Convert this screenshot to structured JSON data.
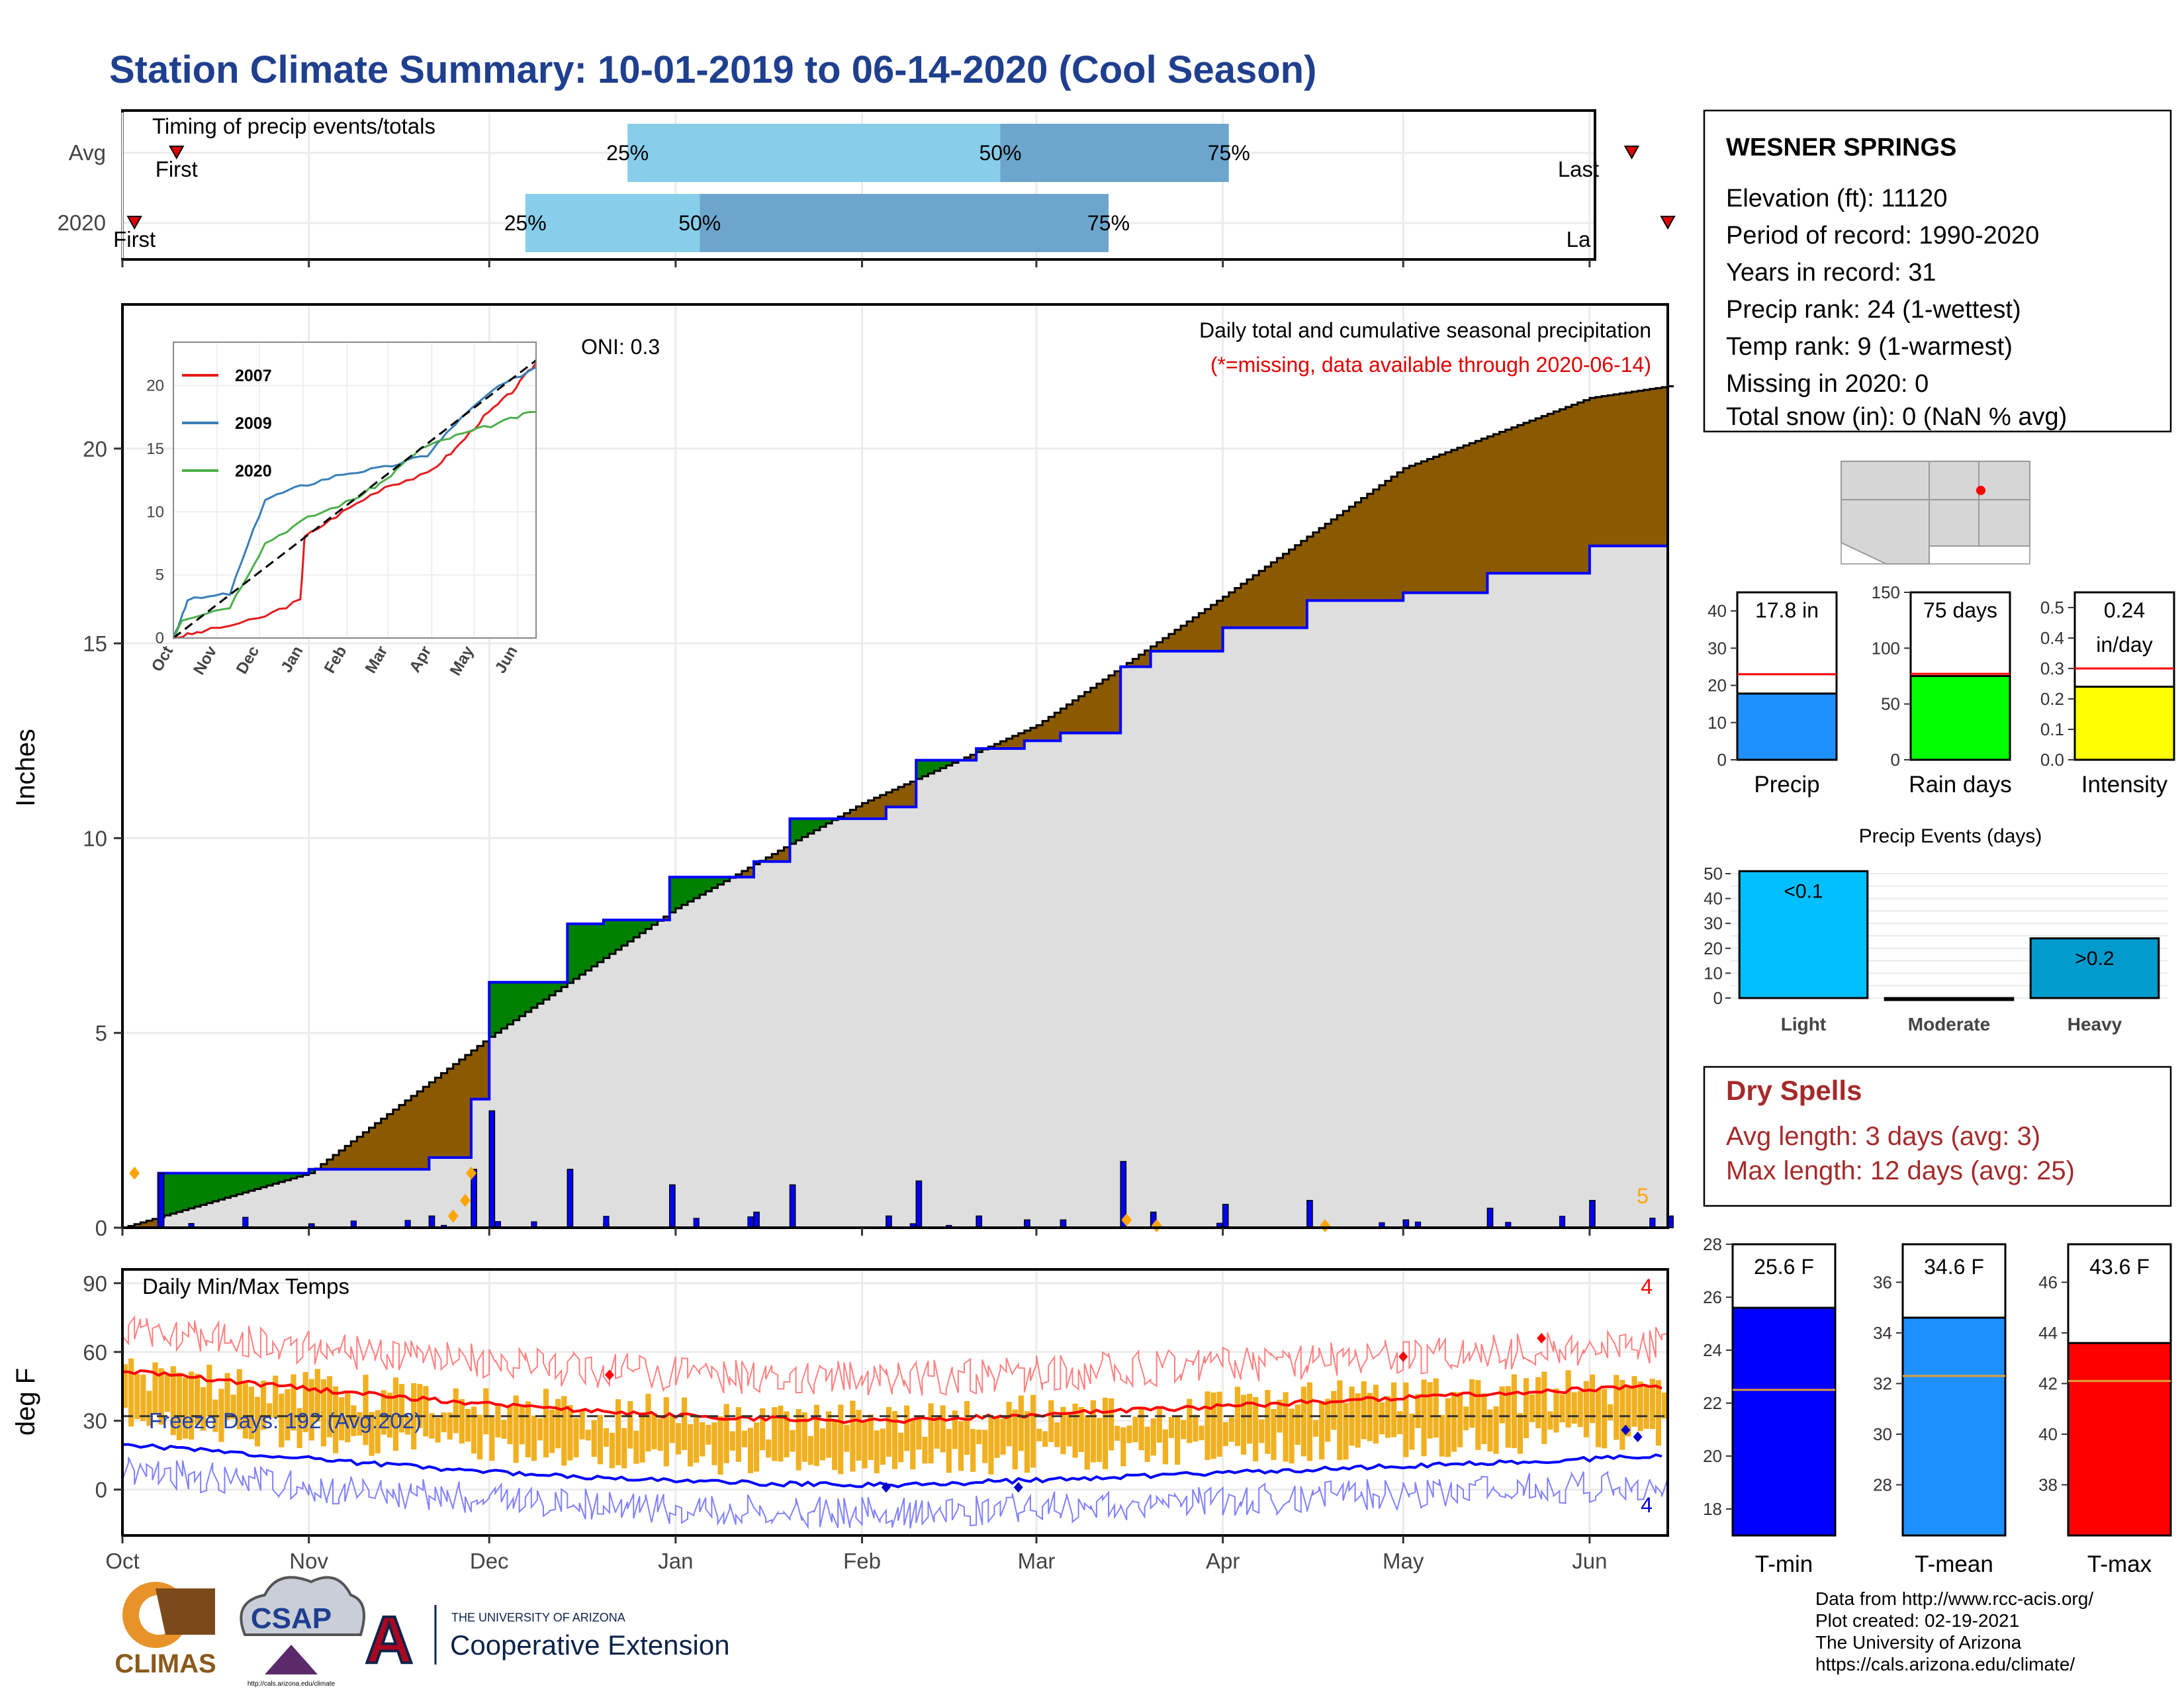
{
  "title": "Station Climate Summary: 10-01-2019 to 06-14-2020 (Cool Season)",
  "timing": {
    "label": "Timing of precip events/totals",
    "rows": [
      {
        "name": "Avg",
        "first_label": "First",
        "last_label": "Last",
        "q25": "25%",
        "q50": "50%",
        "q75": "75%",
        "first_date": "2019-10-10",
        "p25_date": "2019-12-24",
        "p50_date": "2020-02-24",
        "p75_date": "2020-04-02",
        "last_date": "2020-06-08"
      },
      {
        "name": "2020",
        "first_label": "First",
        "last_label": "La",
        "q25": "25%",
        "q50": "50%",
        "q75": "75%",
        "first_date": "2019-10-03",
        "p25_date": "2019-12-07",
        "p50_date": "2020-01-05",
        "p75_date": "2020-03-13",
        "last_date": "2020-06-14"
      }
    ]
  },
  "precip": {
    "ylabel": "Inches",
    "title": "Daily total and cumulative seasonal precipitation",
    "subtitle": "(*=missing, data available through 2020-06-14)",
    "oni": "ONI: 0.3",
    "corner_count": "5",
    "yticks": [
      "0",
      "5",
      "10",
      "15",
      "20"
    ]
  },
  "months": [
    "Oct",
    "Nov",
    "Dec",
    "Jan",
    "Feb",
    "Mar",
    "Apr",
    "May",
    "Jun"
  ],
  "inset": {
    "yticks": [
      "0",
      "5",
      "10",
      "15",
      "20"
    ],
    "xticks": [
      "Oct",
      "Nov",
      "Dec",
      "Jan",
      "Feb",
      "Mar",
      "Apr",
      "May",
      "Jun"
    ],
    "legend": [
      "2007",
      "2009",
      "2020"
    ],
    "legend_colors": [
      "#e41a1c",
      "#377eb8",
      "#4daf4a"
    ]
  },
  "temps": {
    "ylabel": "deg F",
    "label": "Daily Min/Max Temps",
    "freeze": "Freeze Days: 192 (Avg:202)",
    "max_count": "4",
    "min_count": "4",
    "yticks": [
      "0",
      "30",
      "60",
      "90"
    ]
  },
  "station": {
    "name": "WESNER SPRINGS",
    "lines": [
      "Elevation (ft): 11120",
      "Period of record: 1990-2020",
      "Years in record: 31",
      "Precip rank: 24 (1-wettest)",
      "Temp rank: 9 (1-warmest)",
      "Missing in 2020: 0",
      "Total snow (in): 0 (NaN % avg)"
    ]
  },
  "mini_bars": [
    {
      "label": "Precip",
      "value_text": "17.8 in",
      "value": 17.8,
      "avg": 23,
      "ymax": 45,
      "yticks": [
        "0",
        "10",
        "20",
        "30",
        "40"
      ],
      "color": "#1e90ff"
    },
    {
      "label": "Rain days",
      "value_text": "75 days",
      "value": 75,
      "avg": 77,
      "ymax": 150,
      "yticks": [
        "0",
        "50",
        "100",
        "150"
      ],
      "color": "#00ff00"
    },
    {
      "label": "Intensity",
      "value_text": "0.24",
      "value_text2": "in/day",
      "value": 0.24,
      "avg": 0.3,
      "ymax": 0.55,
      "yticks": [
        "0.0",
        "0.1",
        "0.2",
        "0.3",
        "0.4",
        "0.5"
      ],
      "color": "#ffff00"
    }
  ],
  "events": {
    "title": "Precip Events (days)",
    "categories": [
      "Light",
      "Moderate",
      "Heavy"
    ],
    "values": [
      51,
      0,
      24
    ],
    "bar_labels": [
      "<0.1",
      "",
      ">0.2"
    ],
    "yticks": [
      "0",
      "10",
      "20",
      "30",
      "40",
      "50"
    ],
    "colors": [
      "#00bfff",
      "#1e90ff",
      "#009acd"
    ]
  },
  "dry_spells": {
    "title": "Dry Spells",
    "avg": "Avg length: 3 days (avg: 3)",
    "max": "Max length: 12 days (avg: 25)"
  },
  "temp_bars": [
    {
      "label": "T-min",
      "value_text": "25.6 F",
      "value": 25.6,
      "avg": 22.5,
      "ylim": [
        17,
        28
      ],
      "yticks": [
        "18",
        "20",
        "22",
        "24",
        "26",
        "28"
      ],
      "color": "#0000ff"
    },
    {
      "label": "T-mean",
      "value_text": "34.6 F",
      "value": 34.6,
      "avg": 32.3,
      "ylim": [
        26,
        37.5
      ],
      "yticks": [
        "28",
        "30",
        "32",
        "34",
        "36"
      ],
      "color": "#1e90ff"
    },
    {
      "label": "T-max",
      "value_text": "43.6 F",
      "value": 43.6,
      "avg": 42.1,
      "ylim": [
        36,
        47.5
      ],
      "yticks": [
        "38",
        "40",
        "42",
        "44",
        "46"
      ],
      "color": "#ff0000"
    }
  ],
  "footer": [
    "Data from http://www.rcc-acis.org/",
    "Plot created: 02-19-2021",
    "The University of Arizona",
    "https://cals.arizona.edu/climate/"
  ],
  "logos": {
    "climas": "CLIMAS",
    "csap": "CSAP",
    "csap_url": "http://cals.arizona.edu/climate",
    "ua_small": "THE UNIVERSITY OF ARIZONA",
    "ua_big": "Cooperative Extension"
  },
  "chart_data": {
    "type": "area",
    "series": [
      {
        "name": "2020",
        "x": [
          "2019-10-01",
          "2019-10-07",
          "2019-11-01",
          "2019-11-21",
          "2019-11-28",
          "2019-12-01",
          "2019-12-14",
          "2019-12-20",
          "2019-12-31",
          "2020-01-14",
          "2020-01-20",
          "2020-02-05",
          "2020-02-10",
          "2020-02-20",
          "2020-02-28",
          "2020-03-05",
          "2020-03-15",
          "2020-03-20",
          "2020-04-01",
          "2020-04-15",
          "2020-05-01",
          "2020-05-15",
          "2020-06-01",
          "2020-06-14"
        ],
        "values": [
          0,
          1.4,
          1.5,
          1.8,
          3.3,
          6.3,
          7.8,
          7.9,
          9.0,
          9.4,
          10.5,
          10.8,
          12.0,
          12.3,
          12.5,
          12.7,
          14.4,
          14.8,
          15.4,
          16.1,
          16.3,
          16.8,
          17.5,
          17.8
        ]
      },
      {
        "name": "Avg",
        "x": [
          "2019-10-01",
          "2019-11-01",
          "2019-12-01",
          "2020-01-01",
          "2020-02-01",
          "2020-03-01",
          "2020-04-01",
          "2020-05-01",
          "2020-06-01",
          "2020-06-14"
        ],
        "values": [
          0,
          1.4,
          4.9,
          8.2,
          10.9,
          12.9,
          16.2,
          19.5,
          21.3,
          21.6
        ]
      }
    ],
    "ylim": [
      0,
      23.5
    ]
  }
}
